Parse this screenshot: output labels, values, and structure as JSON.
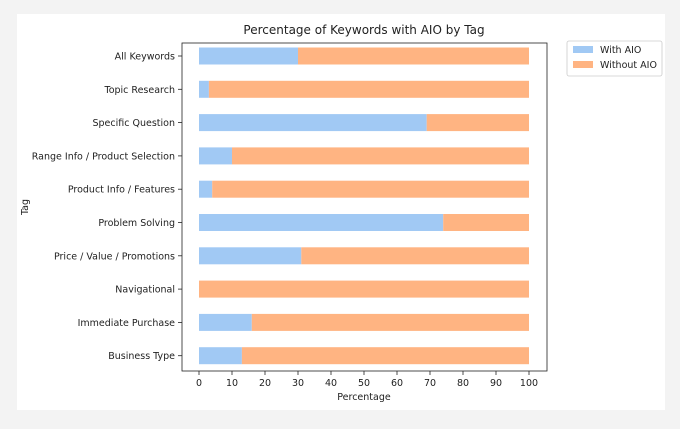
{
  "chart_data": {
    "type": "bar",
    "orientation": "horizontal",
    "stacked": true,
    "title": "Percentage of Keywords with AIO by Tag",
    "xlabel": "Percentage",
    "ylabel": "Tag",
    "xlim": [
      0,
      100
    ],
    "xticks": [
      0,
      10,
      20,
      30,
      40,
      50,
      60,
      70,
      80,
      90,
      100
    ],
    "grid": false,
    "legend_position": "outside-top-right",
    "categories": [
      "All Keywords",
      "Topic Research",
      "Specific Question",
      "Range Info / Product Selection",
      "Product Info / Features",
      "Problem Solving",
      "Price / Value / Promotions",
      "Navigational",
      "Immediate Purchase",
      "Business Type"
    ],
    "series": [
      {
        "name": "With AIO",
        "color": "#a1c9f4",
        "values": [
          30,
          3,
          69,
          10,
          4,
          74,
          31,
          0,
          16,
          13
        ]
      },
      {
        "name": "Without AIO",
        "color": "#ffb482",
        "values": [
          70,
          97,
          31,
          90,
          96,
          26,
          69,
          100,
          84,
          87
        ]
      }
    ]
  }
}
